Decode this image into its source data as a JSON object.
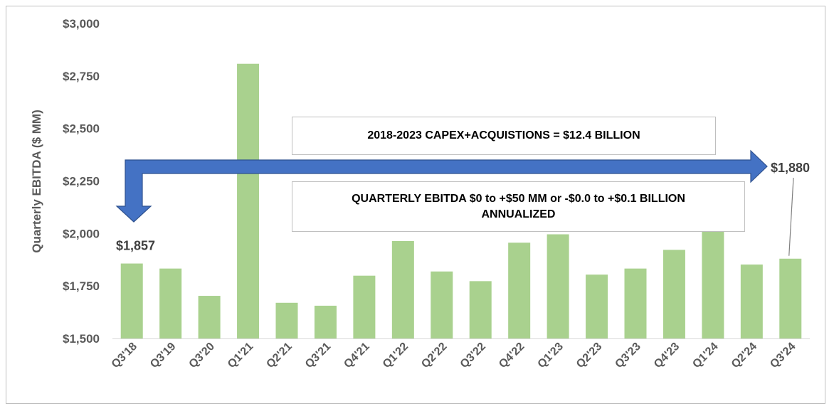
{
  "chart_data": {
    "type": "bar",
    "ylabel": "Quarterly  EBITDA ($ MM)",
    "ylim": [
      1500,
      3000
    ],
    "yticks": [
      1500,
      1750,
      2000,
      2250,
      2500,
      2750,
      3000
    ],
    "ytick_labels": [
      "$1,500",
      "$1,750",
      "$2,000",
      "$2,250",
      "$2,500",
      "$2,750",
      "$3,000"
    ],
    "categories": [
      "Q3'18",
      "Q3'19",
      "Q3'20",
      "Q1'21",
      "Q2'21",
      "Q3'21",
      "Q4'21",
      "Q1'22",
      "Q2'22",
      "Q3'22",
      "Q4'22",
      "Q1'23",
      "Q2'23",
      "Q3'23",
      "Q4'23",
      "Q1'24",
      "Q2'24",
      "Q3'24"
    ],
    "values": [
      1857,
      1833,
      1703,
      2808,
      1670,
      1656,
      1799,
      1964,
      1819,
      1773,
      1956,
      1996,
      1804,
      1833,
      1922,
      2010,
      1852,
      1880
    ],
    "data_labels": [
      {
        "index": 0,
        "text": "$1,857"
      },
      {
        "index": 17,
        "text": "$1,880"
      }
    ],
    "bar_color": "#a9d18e",
    "arrow_color": "#4472c4",
    "grid": false,
    "annotations": [
      {
        "text": "2018-2023 CAPEX+ACQUISTIONS = $12.4 BILLION"
      },
      {
        "text": "QUARTERLY EBITDA  $0 to +$50 MM or -$0.0 to +$0.1 BILLION\nANNUALIZED"
      }
    ]
  }
}
